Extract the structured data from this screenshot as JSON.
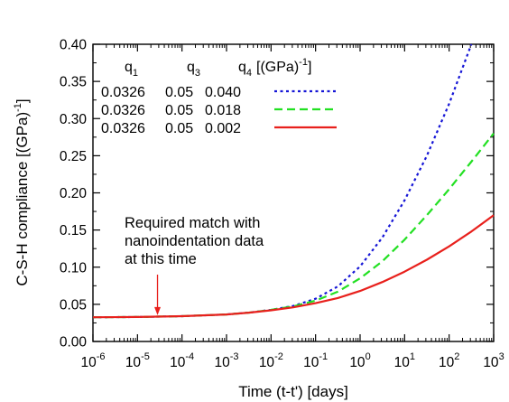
{
  "chart_data": {
    "type": "line",
    "title": "",
    "xlabel": "Time (t-t') [days]",
    "ylabel": "C-S-H compliance [(GPa)⁻¹]",
    "xscale": "log",
    "xlim_exponent": [
      -6,
      3
    ],
    "ylim": [
      0.0,
      0.4
    ],
    "grid": false,
    "x_ticks": [
      {
        "base": "10",
        "exp": "-6"
      },
      {
        "base": "10",
        "exp": "-5"
      },
      {
        "base": "10",
        "exp": "-4"
      },
      {
        "base": "10",
        "exp": "-3"
      },
      {
        "base": "10",
        "exp": "-2"
      },
      {
        "base": "10",
        "exp": "-1"
      },
      {
        "base": "10",
        "exp": "0"
      },
      {
        "base": "10",
        "exp": "1"
      },
      {
        "base": "10",
        "exp": "2"
      },
      {
        "base": "10",
        "exp": "3"
      }
    ],
    "y_ticks": [
      "0.00",
      "0.05",
      "0.10",
      "0.15",
      "0.20",
      "0.25",
      "0.30",
      "0.35",
      "0.40"
    ],
    "legend": {
      "placement": "top-left",
      "headers": {
        "q1": "q",
        "q1_sub": "1",
        "q3": "q",
        "q3_sub": "3",
        "q4": "q",
        "q4_sub": "4",
        "unit": "[(GPa)",
        "unit_sup": "-1",
        "unit_close": "]"
      },
      "rows": [
        {
          "q1": "0.0326",
          "q3": "0.05",
          "q4": "0.040",
          "color": "#1515d6",
          "dash": "dotted"
        },
        {
          "q1": "0.0326",
          "q3": "0.05",
          "q4": "0.018",
          "color": "#22e022",
          "dash": "dashed"
        },
        {
          "q1": "0.0326",
          "q3": "0.05",
          "q4": "0.002",
          "color": "#e8201c",
          "dash": "solid"
        }
      ]
    },
    "series": [
      {
        "q4": 0.04,
        "color": "#1515d6",
        "dash": "dotted",
        "x_log10": [
          -6,
          -5,
          -4,
          -3,
          -2.5,
          -2,
          -1.5,
          -1,
          -0.5,
          0,
          0.5,
          1,
          1.5,
          2,
          2.5
        ],
        "y": [
          0.0326,
          0.033,
          0.034,
          0.0364,
          0.0388,
          0.0425,
          0.0478,
          0.0575,
          0.074,
          0.101,
          0.14,
          0.19,
          0.25,
          0.32,
          0.4
        ]
      },
      {
        "q4": 0.018,
        "color": "#22e022",
        "dash": "dashed",
        "x_log10": [
          -6,
          -5,
          -4,
          -3,
          -2.5,
          -2,
          -1.5,
          -1,
          -0.5,
          0,
          0.5,
          1,
          1.5,
          2,
          2.5,
          3
        ],
        "y": [
          0.0326,
          0.033,
          0.034,
          0.0364,
          0.0388,
          0.0425,
          0.0472,
          0.055,
          0.067,
          0.085,
          0.108,
          0.137,
          0.17,
          0.205,
          0.242,
          0.28
        ]
      },
      {
        "q4": 0.002,
        "color": "#e8201c",
        "dash": "solid",
        "x_log10": [
          -6,
          -5,
          -4,
          -3,
          -2.5,
          -2,
          -1.5,
          -1,
          -0.5,
          0,
          0.5,
          1,
          1.5,
          2,
          2.5,
          3
        ],
        "y": [
          0.0326,
          0.033,
          0.034,
          0.0364,
          0.0388,
          0.042,
          0.046,
          0.0515,
          0.0585,
          0.068,
          0.08,
          0.094,
          0.11,
          0.128,
          0.148,
          0.17
        ]
      }
    ],
    "annotation": {
      "lines": [
        "Required match with",
        "nanoindentation data",
        "at this time"
      ],
      "arrow_x_log10": -4.55,
      "arrow_y": 0.033,
      "color": "#e8201c"
    }
  }
}
